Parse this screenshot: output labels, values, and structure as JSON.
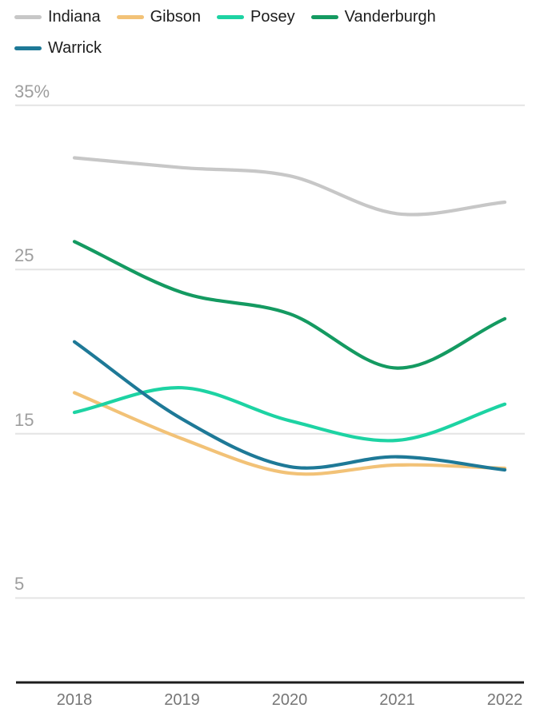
{
  "chart_data": {
    "type": "line",
    "title": "",
    "xlabel": "",
    "ylabel": "",
    "x": [
      2018,
      2019,
      2020,
      2021,
      2022
    ],
    "x_tick_labels": [
      "2018",
      "2019",
      "2020",
      "2021",
      "2022"
    ],
    "y_ticks": [
      35,
      25,
      15,
      5
    ],
    "y_tick_labels": [
      "35%",
      "25",
      "15",
      "5"
    ],
    "ylim": [
      0,
      37
    ],
    "grid": true,
    "legend_position": "top-left",
    "curve": "smooth",
    "series": [
      {
        "name": "Indiana",
        "color": "#c7c7c7",
        "values": [
          31.8,
          31.2,
          30.7,
          28.4,
          29.1
        ]
      },
      {
        "name": "Gibson",
        "color": "#f2c277",
        "values": [
          17.5,
          14.7,
          12.6,
          13.1,
          12.9
        ]
      },
      {
        "name": "Posey",
        "color": "#1dd3a3",
        "values": [
          16.3,
          17.8,
          15.8,
          14.6,
          16.8
        ]
      },
      {
        "name": "Vanderburgh",
        "color": "#149a61",
        "values": [
          26.7,
          23.6,
          22.3,
          19.0,
          22.0
        ]
      },
      {
        "name": "Warrick",
        "color": "#1e7997",
        "values": [
          20.6,
          15.9,
          13.0,
          13.6,
          12.8
        ]
      }
    ]
  },
  "colors": {
    "background": "#ffffff",
    "gridline": "#e4e4e4",
    "axis_line": "#1c1c1c",
    "y_tick_text": "#9e9e9e",
    "x_tick_text": "#767676",
    "legend_text": "#1d1d1d"
  }
}
